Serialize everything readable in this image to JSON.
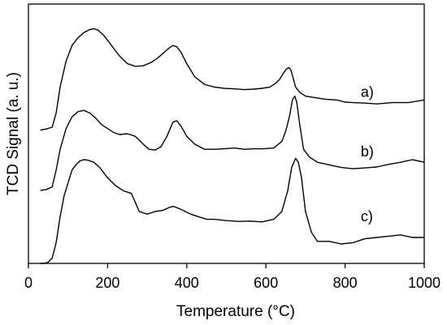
{
  "chart_data": {
    "type": "line",
    "title": "",
    "xlabel": "Temperature (°C)",
    "ylabel": "TCD Signal (a. u.)",
    "xlim": [
      0,
      1000
    ],
    "ylim": [
      0,
      1
    ],
    "xticks": [
      0,
      200,
      400,
      600,
      800,
      1000
    ],
    "grid": false,
    "legend": "none",
    "line_color": "#000000",
    "series": [
      {
        "name": "a)",
        "x": [
          30,
          45,
          60,
          70,
          80,
          95,
          110,
          125,
          140,
          155,
          165,
          175,
          190,
          210,
          230,
          250,
          270,
          290,
          310,
          325,
          340,
          355,
          365,
          375,
          385,
          400,
          420,
          445,
          470,
          495,
          520,
          545,
          570,
          590,
          610,
          625,
          635,
          645,
          652,
          658,
          663,
          668,
          675,
          685,
          700,
          720,
          750,
          780,
          800,
          820,
          850,
          880,
          920,
          960,
          1000
        ],
        "y": [
          0.514,
          0.518,
          0.525,
          0.58,
          0.68,
          0.78,
          0.84,
          0.87,
          0.89,
          0.902,
          0.905,
          0.9,
          0.88,
          0.84,
          0.8,
          0.77,
          0.76,
          0.762,
          0.775,
          0.79,
          0.81,
          0.83,
          0.84,
          0.835,
          0.815,
          0.77,
          0.72,
          0.69,
          0.68,
          0.675,
          0.673,
          0.67,
          0.672,
          0.675,
          0.68,
          0.695,
          0.71,
          0.735,
          0.75,
          0.755,
          0.745,
          0.72,
          0.68,
          0.66,
          0.645,
          0.64,
          0.633,
          0.63,
          0.622,
          0.62,
          0.618,
          0.615,
          0.62,
          0.62,
          0.63
        ]
      },
      {
        "name": "b)",
        "x": [
          30,
          45,
          60,
          70,
          80,
          95,
          110,
          125,
          140,
          155,
          170,
          185,
          200,
          215,
          230,
          250,
          270,
          290,
          305,
          320,
          335,
          350,
          365,
          375,
          385,
          400,
          420,
          445,
          470,
          495,
          520,
          545,
          570,
          595,
          620,
          640,
          650,
          660,
          667,
          673,
          678,
          685,
          695,
          710,
          730,
          760,
          790,
          820,
          850,
          880,
          910,
          940,
          970,
          1000
        ],
        "y": [
          0.281,
          0.285,
          0.295,
          0.36,
          0.44,
          0.52,
          0.565,
          0.585,
          0.59,
          0.58,
          0.56,
          0.535,
          0.52,
          0.505,
          0.497,
          0.5,
          0.49,
          0.46,
          0.44,
          0.437,
          0.45,
          0.49,
          0.545,
          0.55,
          0.53,
          0.49,
          0.46,
          0.44,
          0.44,
          0.442,
          0.445,
          0.44,
          0.442,
          0.442,
          0.445,
          0.47,
          0.51,
          0.57,
          0.63,
          0.645,
          0.62,
          0.54,
          0.44,
          0.41,
          0.39,
          0.38,
          0.37,
          0.365,
          0.368,
          0.372,
          0.382,
          0.39,
          0.4,
          0.39
        ]
      },
      {
        "name": "c)",
        "x": [
          30,
          40,
          50,
          60,
          70,
          80,
          90,
          100,
          110,
          120,
          130,
          140,
          150,
          165,
          180,
          200,
          220,
          240,
          260,
          280,
          300,
          320,
          340,
          355,
          365,
          375,
          390,
          410,
          430,
          450,
          470,
          500,
          530,
          560,
          590,
          620,
          640,
          655,
          665,
          675,
          682,
          690,
          700,
          715,
          730,
          760,
          790,
          820,
          850,
          880,
          910,
          940,
          970,
          1000
        ],
        "y": [
          0.0,
          0.0,
          0.005,
          0.02,
          0.08,
          0.18,
          0.26,
          0.31,
          0.36,
          0.38,
          0.395,
          0.4,
          0.398,
          0.39,
          0.37,
          0.33,
          0.3,
          0.28,
          0.27,
          0.2,
          0.19,
          0.2,
          0.205,
          0.215,
          0.22,
          0.215,
          0.205,
          0.19,
          0.18,
          0.17,
          0.17,
          0.165,
          0.162,
          0.163,
          0.16,
          0.17,
          0.2,
          0.28,
          0.37,
          0.405,
          0.39,
          0.33,
          0.2,
          0.12,
          0.085,
          0.085,
          0.075,
          0.08,
          0.095,
          0.1,
          0.105,
          0.11,
          0.1,
          0.1
        ]
      }
    ]
  }
}
